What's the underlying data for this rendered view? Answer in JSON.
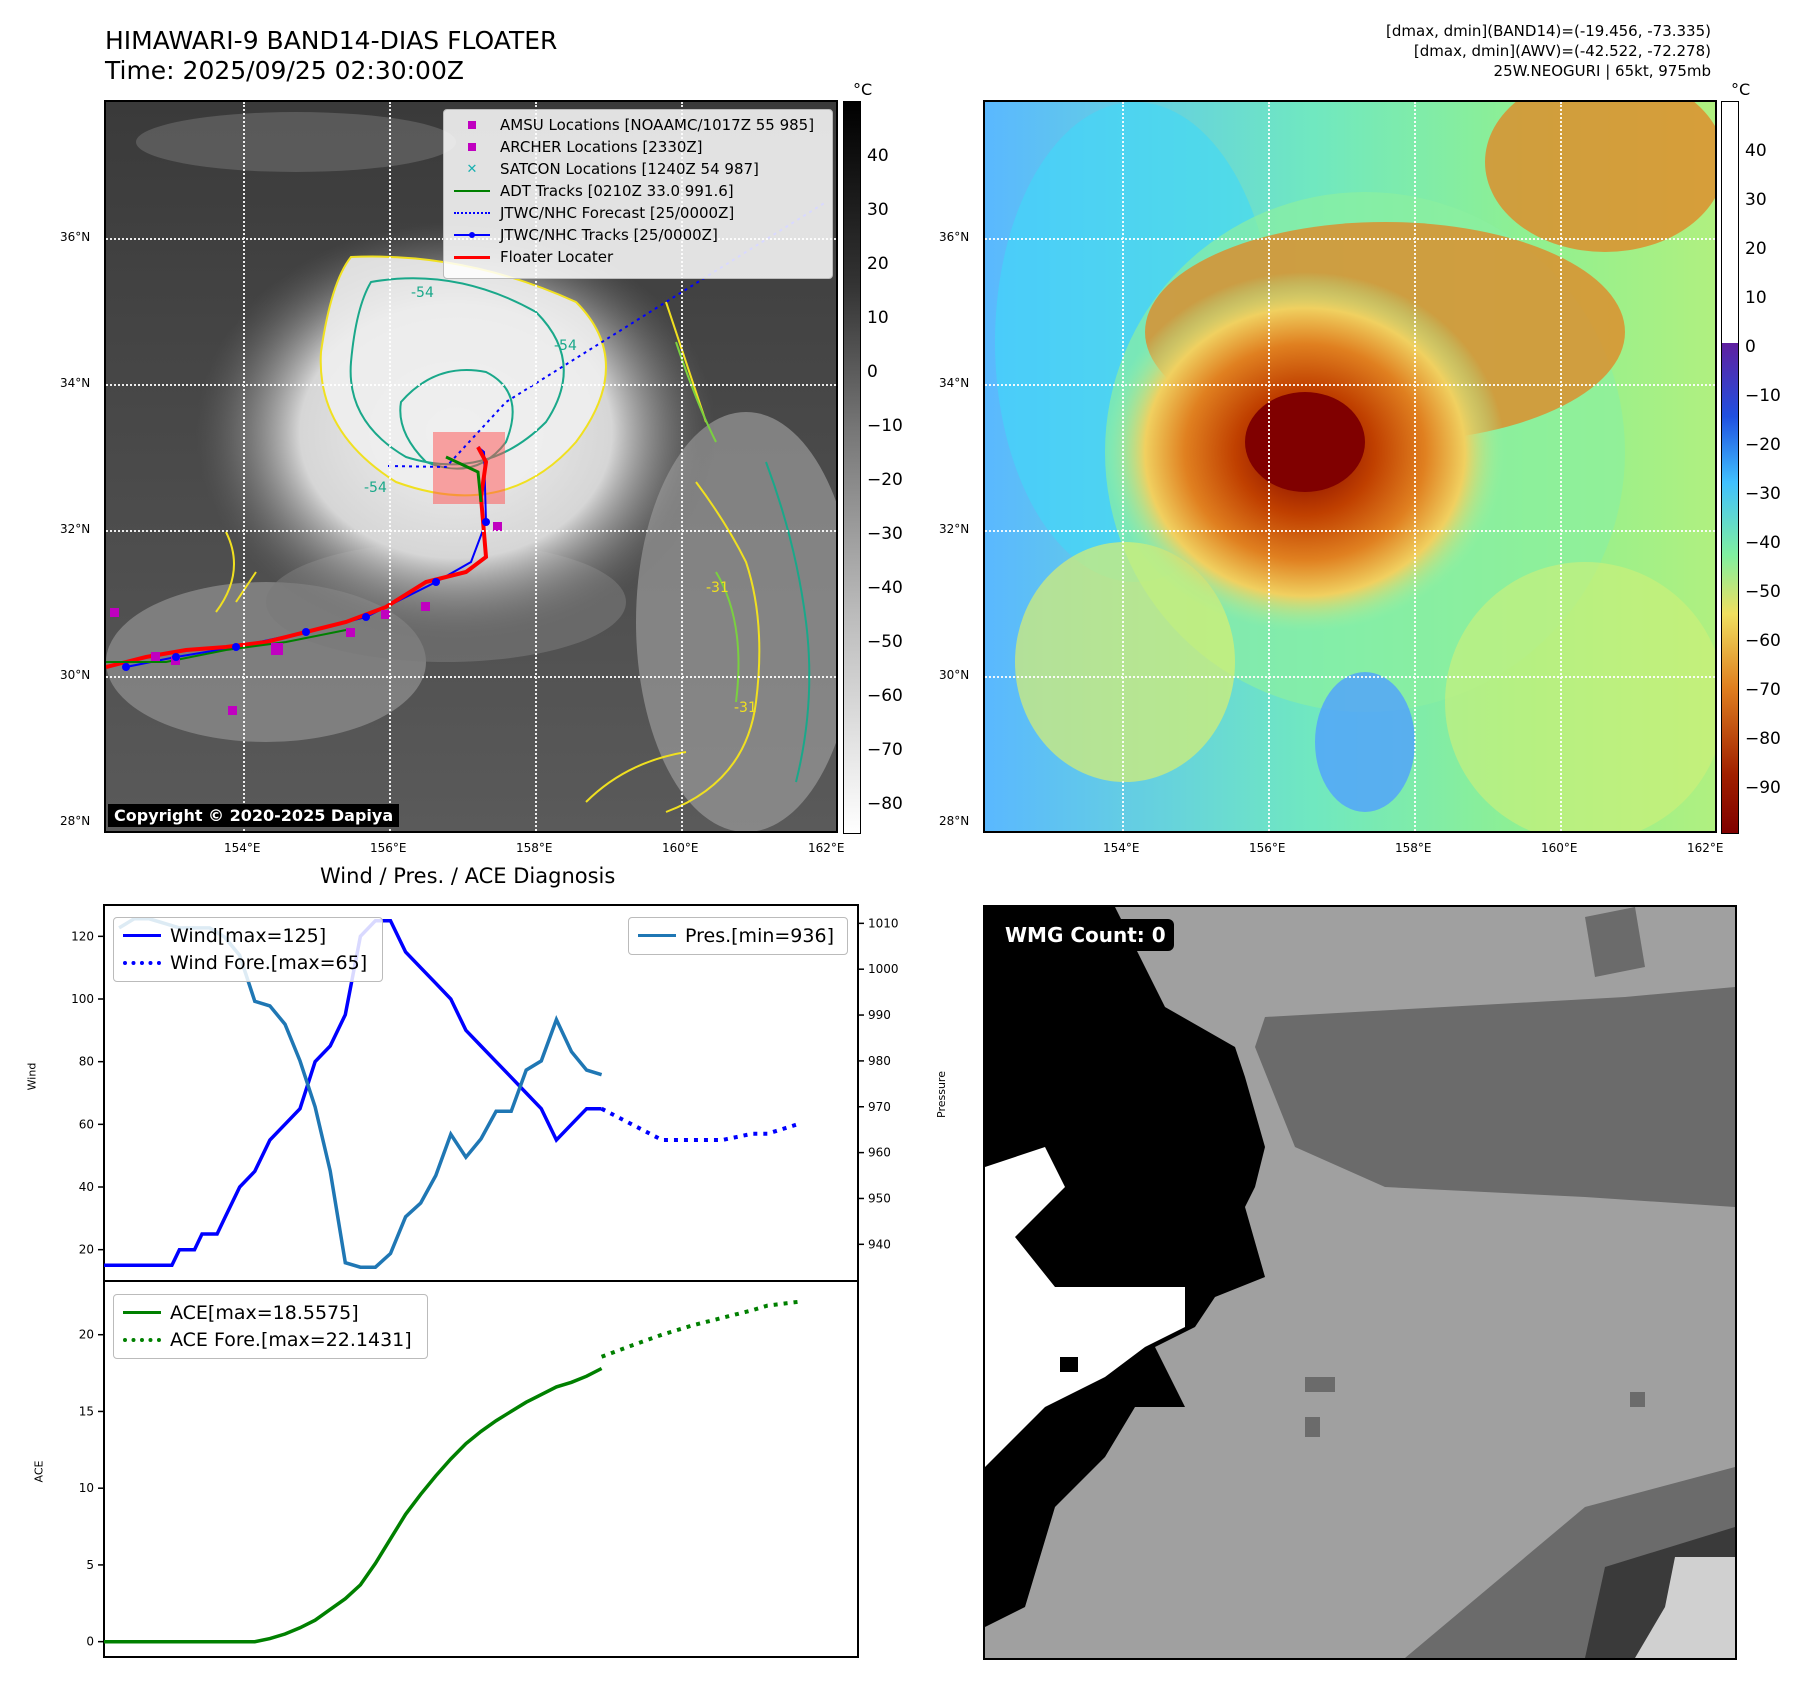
{
  "header": {
    "title_line1": "HIMAWARI-9 BAND14-DIAS FLOATER",
    "title_line2": "Time: 2025/09/25 02:30:00Z",
    "info_line1": "[dmax, dmin](BAND14)=(-19.456, -73.335)",
    "info_line2": "[dmax, dmin](AWV)=(-42.522, -72.278)",
    "info_line3": "25W.NEOGURI | 65kt, 975mb"
  },
  "map": {
    "lat_labels": [
      "36°N",
      "34°N",
      "32°N",
      "30°N",
      "28°N"
    ],
    "lon_labels": [
      "154°E",
      "156°E",
      "158°E",
      "160°E",
      "162°E"
    ],
    "copyright": "Copyright © 2020-2025 Dapiya",
    "contour_labels": [
      "-54",
      "-54",
      "-54",
      "-31",
      "-31"
    ],
    "legend": [
      {
        "label": "AMSU Locations [NOAAMC/1017Z 55 985]",
        "symbol": "square",
        "color": "#c000c0"
      },
      {
        "label": "ARCHER Locations [2330Z]",
        "symbol": "square",
        "color": "#c000c0"
      },
      {
        "label": "SATCON Locations [1240Z 54 987]",
        "symbol": "x",
        "color": "#18b0b0"
      },
      {
        "label": "ADT Tracks [0210Z 33.0 991.6]",
        "symbol": "line",
        "color": "#008000"
      },
      {
        "label": "JTWC/NHC Forecast [25/0000Z]",
        "symbol": "dotted",
        "color": "#0000ff"
      },
      {
        "label": "JTWC/NHC Tracks [25/0000Z]",
        "symbol": "line-dot",
        "color": "#0000ff"
      },
      {
        "label": "Floater Locater",
        "symbol": "line",
        "color": "#ff0000"
      }
    ]
  },
  "colorbar_gray": {
    "unit": "°C",
    "ticks": [
      "40",
      "30",
      "20",
      "10",
      "0",
      "−10",
      "−20",
      "−30",
      "−40",
      "−50",
      "−60",
      "−70",
      "−80"
    ]
  },
  "colorbar_awv": {
    "unit": "°C",
    "ticks": [
      "40",
      "30",
      "20",
      "10",
      "0",
      "−10",
      "−20",
      "−30",
      "−40",
      "−50",
      "−60",
      "−70",
      "−80",
      "−90"
    ]
  },
  "wmg": {
    "label": "WMG Count: 0"
  },
  "chart_data": [
    {
      "type": "line",
      "title": "Wind / Pres. / ACE Diagnosis",
      "ylabel": "Wind",
      "ylabel_right": "Pressure",
      "ylim": [
        10,
        130
      ],
      "ylim_right": [
        932,
        1014
      ],
      "yticks": [
        20,
        40,
        60,
        80,
        100,
        120
      ],
      "yticks_right": [
        940,
        950,
        960,
        970,
        980,
        990,
        1000,
        1010
      ],
      "legend_left": [
        "Wind[max=125]",
        "Wind Fore.[max=65]"
      ],
      "legend_right": [
        "Pres.[min=936]"
      ],
      "series": [
        {
          "name": "Wind[max=125]",
          "color": "#0000ff",
          "style": "solid",
          "axis": "left",
          "x": [
            0,
            3,
            6,
            9,
            10,
            12,
            13,
            15,
            16,
            18,
            20,
            22,
            24,
            26,
            28,
            30,
            32,
            34,
            36,
            38,
            40,
            42,
            44,
            46,
            48,
            50,
            52,
            54,
            56,
            58,
            60,
            62,
            64,
            66
          ],
          "values": [
            15,
            15,
            15,
            15,
            20,
            20,
            25,
            25,
            30,
            40,
            45,
            55,
            60,
            65,
            80,
            85,
            95,
            120,
            125,
            125,
            115,
            110,
            105,
            100,
            90,
            85,
            80,
            75,
            70,
            65,
            55,
            60,
            65,
            65
          ]
        },
        {
          "name": "Wind Fore.[max=65]",
          "color": "#0000ff",
          "style": "dotted",
          "axis": "left",
          "x": [
            66,
            70,
            74,
            78,
            82,
            86,
            88,
            92
          ],
          "values": [
            65,
            60,
            55,
            55,
            55,
            57,
            57,
            60
          ]
        },
        {
          "name": "Pres.[min=936]",
          "color": "#1f77b4",
          "style": "solid",
          "axis": "right",
          "x": [
            2,
            4,
            6,
            8,
            10,
            12,
            14,
            16,
            18,
            20,
            22,
            24,
            26,
            28,
            30,
            32,
            34,
            36,
            38,
            40,
            42,
            44,
            46,
            48,
            50,
            52,
            54,
            56,
            58,
            60,
            62,
            64,
            66
          ],
          "values": [
            1009,
            1011,
            1011,
            1010,
            1009,
            1009,
            1009,
            1007,
            1003,
            993,
            992,
            988,
            980,
            970,
            956,
            936,
            935,
            935,
            938,
            946,
            949,
            955,
            964,
            959,
            963,
            969,
            969,
            978,
            980,
            989,
            982,
            978,
            977
          ]
        }
      ]
    },
    {
      "type": "line",
      "ylabel": "ACE",
      "ylim": [
        -1,
        23.5
      ],
      "yticks": [
        0,
        5,
        10,
        15,
        20
      ],
      "legend": [
        "ACE[max=18.5575]",
        "ACE Fore.[max=22.1431]"
      ],
      "series": [
        {
          "name": "ACE[max=18.5575]",
          "color": "#008000",
          "style": "solid",
          "x": [
            0,
            4,
            8,
            12,
            16,
            20,
            22,
            24,
            26,
            28,
            30,
            32,
            34,
            36,
            38,
            40,
            42,
            44,
            46,
            48,
            50,
            52,
            54,
            56,
            58,
            60,
            62,
            64,
            66
          ],
          "values": [
            0,
            0,
            0,
            0,
            0,
            0,
            0.2,
            0.5,
            0.9,
            1.4,
            2.1,
            2.8,
            3.7,
            5.1,
            6.7,
            8.3,
            9.6,
            10.8,
            11.9,
            12.9,
            13.7,
            14.4,
            15.0,
            15.6,
            16.1,
            16.6,
            16.9,
            17.3,
            17.8
          ]
        },
        {
          "name": "ACE Fore.[max=22.1431]",
          "color": "#008000",
          "style": "dotted",
          "x": [
            66,
            70,
            74,
            78,
            82,
            86,
            88,
            92
          ],
          "values": [
            18.56,
            19.3,
            20.0,
            20.6,
            21.1,
            21.6,
            21.9,
            22.14
          ]
        }
      ]
    }
  ]
}
